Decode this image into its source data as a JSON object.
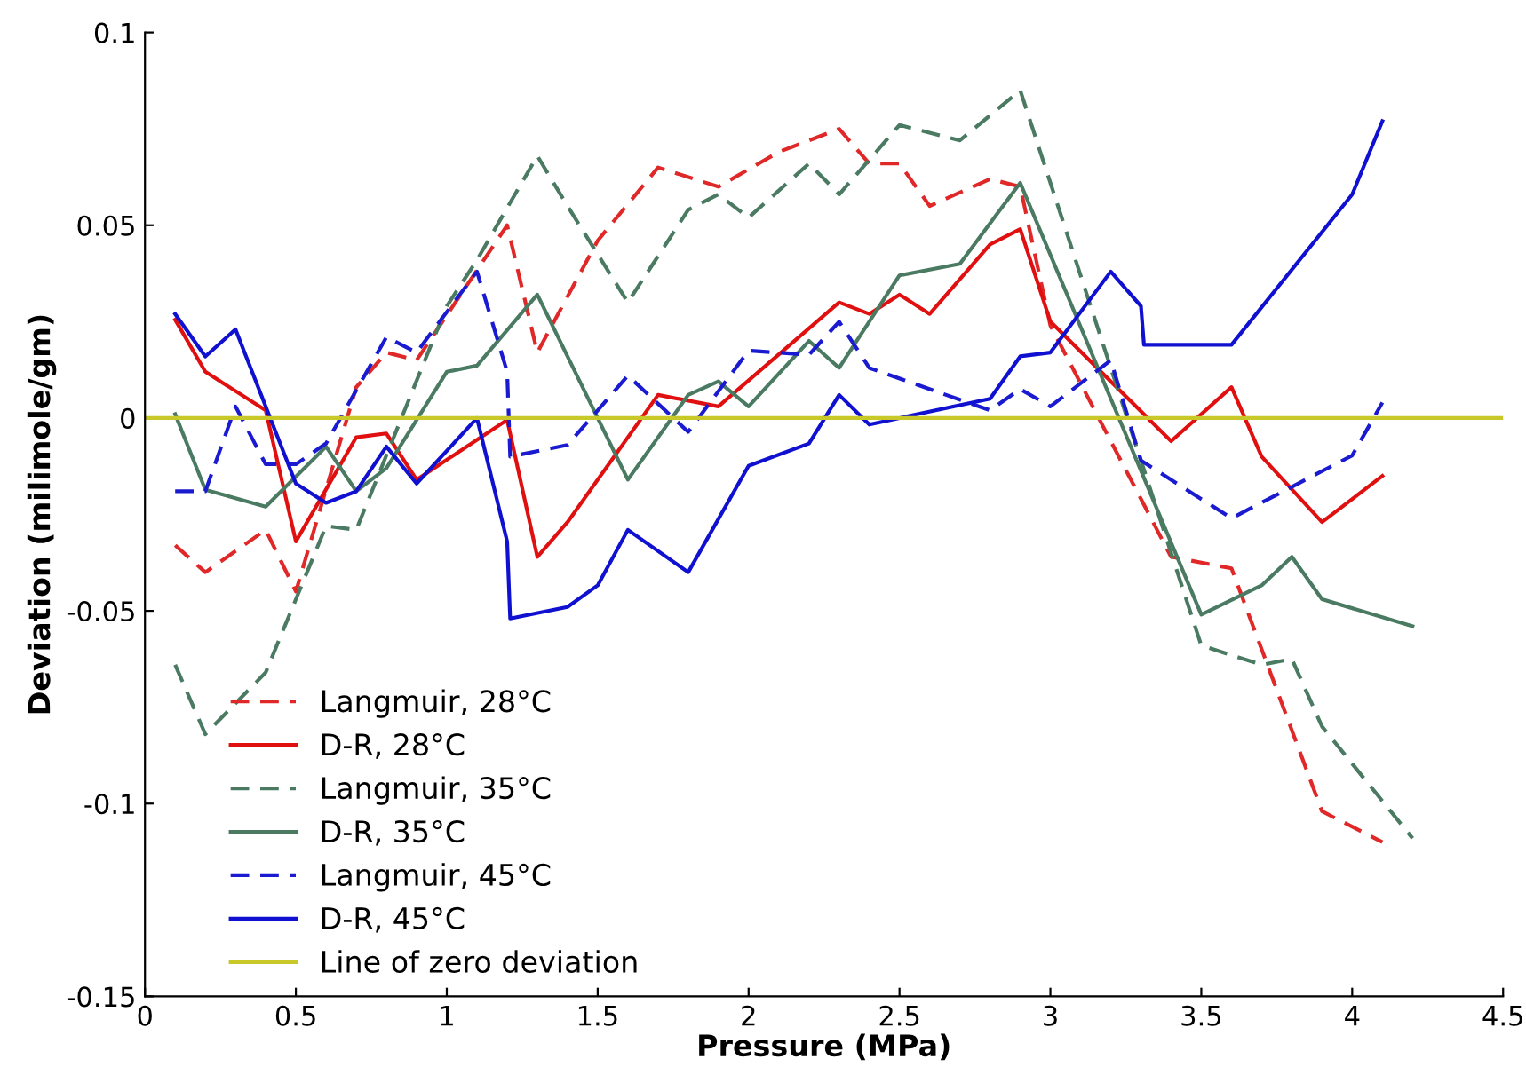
{
  "chart_data": {
    "type": "line",
    "xlabel": "Pressure (MPa)",
    "ylabel": "Deviation (milimole/gm)",
    "xlim": [
      0,
      4.5
    ],
    "xticks": [
      0,
      0.5,
      1,
      1.5,
      2,
      2.5,
      3,
      3.5,
      4,
      4.5
    ],
    "ylim": [
      -0.15,
      0.1
    ],
    "yticks": [
      -0.15,
      -0.1,
      -0.05,
      0,
      0.05,
      0.1
    ],
    "grid": false,
    "legend": "bottom left",
    "marker": "none",
    "series": [
      {
        "name": "Langmuir, 28°C",
        "color": "#e02828",
        "line_style": "dashed",
        "x": [
          0.1,
          0.2,
          0.4,
          0.5,
          0.7,
          0.8,
          0.9,
          1.2,
          1.3,
          1.5,
          1.7,
          1.9,
          2.1,
          2.3,
          2.4,
          2.5,
          2.6,
          2.8,
          2.9,
          3.0,
          3.4,
          3.6,
          3.9,
          4.1
        ],
        "values": [
          -0.033,
          -0.04,
          -0.029,
          -0.045,
          0.008,
          0.017,
          0.015,
          0.05,
          0.017,
          0.046,
          0.065,
          0.06,
          0.069,
          0.075,
          0.066,
          0.066,
          0.055,
          0.062,
          0.06,
          0.024,
          -0.036,
          -0.039,
          -0.102,
          -0.11
        ]
      },
      {
        "name": "D-R, 28°C",
        "color": "#e01010",
        "line_style": "solid",
        "x": [
          0.1,
          0.2,
          0.4,
          0.5,
          0.7,
          0.8,
          0.9,
          1.2,
          1.3,
          1.4,
          1.7,
          1.9,
          2.3,
          2.4,
          2.5,
          2.6,
          2.8,
          2.9,
          3.0,
          3.4,
          3.6,
          3.7,
          3.9,
          4.1
        ],
        "values": [
          0.0255,
          0.012,
          0.002,
          -0.032,
          -0.005,
          -0.004,
          -0.016,
          -0.0005,
          -0.036,
          -0.027,
          0.006,
          0.003,
          0.03,
          0.027,
          0.032,
          0.027,
          0.045,
          0.049,
          0.025,
          -0.006,
          0.008,
          -0.01,
          -0.027,
          -0.015
        ]
      },
      {
        "name": "Langmuir, 35°C",
        "color": "#4a7a62",
        "line_style": "dashed",
        "x": [
          0.1,
          0.2,
          0.4,
          0.6,
          0.7,
          1.0,
          1.1,
          1.3,
          1.4,
          1.6,
          1.8,
          1.9,
          2.0,
          2.2,
          2.3,
          2.5,
          2.7,
          2.9,
          3.5,
          3.7,
          3.8,
          3.9,
          4.2
        ],
        "values": [
          -0.064,
          -0.082,
          -0.066,
          -0.028,
          -0.029,
          0.029,
          0.041,
          0.068,
          0.055,
          0.03,
          0.054,
          0.058,
          0.052,
          0.066,
          0.058,
          0.076,
          0.072,
          0.085,
          -0.059,
          -0.064,
          -0.0625,
          -0.08,
          -0.109
        ]
      },
      {
        "name": "D-R, 35°C",
        "color": "#4a7a62",
        "line_style": "solid",
        "x": [
          0.1,
          0.2,
          0.4,
          0.6,
          0.7,
          0.8,
          1.0,
          1.1,
          1.3,
          1.4,
          1.6,
          1.8,
          1.9,
          2.0,
          2.2,
          2.3,
          2.5,
          2.7,
          2.9,
          3.5,
          3.7,
          3.8,
          3.9,
          4.2
        ],
        "values": [
          0.001,
          -0.0186,
          -0.023,
          -0.0074,
          -0.019,
          -0.013,
          0.012,
          0.0136,
          0.032,
          0.016,
          -0.016,
          0.006,
          0.0095,
          0.003,
          0.02,
          0.013,
          0.037,
          0.04,
          0.061,
          -0.051,
          -0.0434,
          -0.036,
          -0.047,
          -0.054
        ]
      },
      {
        "name": "Langmuir, 45°C",
        "color": "#1a1ad0",
        "line_style": "dashed",
        "x": [
          0.1,
          0.2,
          0.3,
          0.4,
          0.5,
          0.6,
          0.8,
          0.9,
          1.1,
          1.2,
          1.21,
          1.4,
          1.6,
          1.8,
          2.0,
          2.2,
          2.3,
          2.4,
          2.8,
          2.9,
          3.0,
          3.2,
          3.3,
          3.6,
          4.0,
          4.1
        ],
        "values": [
          -0.019,
          -0.019,
          0.003,
          -0.012,
          -0.012,
          -0.0066,
          0.021,
          0.017,
          0.038,
          0.012,
          -0.01,
          -0.007,
          0.011,
          -0.0036,
          0.0175,
          0.0164,
          0.025,
          0.013,
          0.002,
          0.0075,
          0.003,
          0.015,
          -0.011,
          -0.026,
          -0.0097,
          0.004
        ]
      },
      {
        "name": "D-R, 45°C",
        "color": "#1010d0",
        "line_style": "solid",
        "x": [
          0.1,
          0.2,
          0.3,
          0.5,
          0.6,
          0.7,
          0.8,
          0.9,
          1.1,
          1.2,
          1.21,
          1.4,
          1.5,
          1.6,
          1.8,
          2.0,
          2.2,
          2.3,
          2.4,
          2.5,
          2.8,
          2.9,
          3.0,
          3.2,
          3.3,
          3.31,
          3.6,
          4.0,
          4.1
        ],
        "values": [
          0.027,
          0.016,
          0.023,
          -0.017,
          -0.022,
          -0.019,
          -0.0074,
          -0.017,
          0,
          -0.032,
          -0.052,
          -0.049,
          -0.0434,
          -0.029,
          -0.04,
          -0.0124,
          -0.0066,
          0.006,
          -0.0017,
          0,
          0.005,
          0.016,
          0.017,
          0.038,
          0.029,
          0.019,
          0.019,
          0.058,
          0.077
        ]
      },
      {
        "name": "Line of zero deviation",
        "color": "#c8c828",
        "line_style": "solid",
        "x": [
          0,
          4.5
        ],
        "values": [
          0,
          0
        ]
      }
    ]
  }
}
